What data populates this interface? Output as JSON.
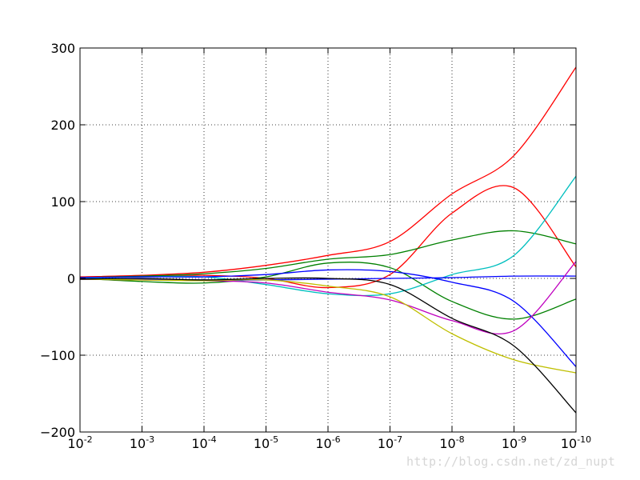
{
  "chart_data": {
    "type": "line",
    "title": "",
    "xlabel": "",
    "ylabel": "",
    "xscale": "log",
    "x_inverted": true,
    "xlim": [
      0.01,
      1e-10
    ],
    "ylim": [
      -200,
      300
    ],
    "grid": true,
    "x_tick_labels": [
      {
        "base": "10",
        "exp": "-2"
      },
      {
        "base": "10",
        "exp": "-3"
      },
      {
        "base": "10",
        "exp": "-4"
      },
      {
        "base": "10",
        "exp": "-5"
      },
      {
        "base": "10",
        "exp": "-6"
      },
      {
        "base": "10",
        "exp": "-7"
      },
      {
        "base": "10",
        "exp": "-8"
      },
      {
        "base": "10",
        "exp": "-9"
      },
      {
        "base": "10",
        "exp": "-10"
      }
    ],
    "y_ticks": [
      300,
      200,
      100,
      0,
      -100,
      -200
    ],
    "y_tick_labels": [
      "300",
      "200",
      "100",
      "0",
      "−100",
      "−200"
    ],
    "x": [
      0.01,
      0.001,
      0.0001,
      1e-05,
      1e-06,
      1e-07,
      1e-08,
      1e-09,
      1e-10
    ],
    "series": [
      {
        "color": "#ff0000",
        "values": [
          2,
          4,
          8,
          17,
          30,
          48,
          110,
          160,
          275
        ]
      },
      {
        "color": "#ff0000",
        "values": [
          1,
          3,
          4,
          0,
          -12,
          5,
          85,
          118,
          15
        ]
      },
      {
        "color": "#008000",
        "values": [
          1,
          3,
          6,
          13,
          25,
          31,
          50,
          62,
          45
        ]
      },
      {
        "color": "#008000",
        "values": [
          0,
          -4,
          -6,
          2,
          20,
          14,
          -30,
          -53,
          -27
        ]
      },
      {
        "color": "#00bfbf",
        "values": [
          0,
          2,
          2,
          -8,
          -20,
          -20,
          5,
          30,
          133
        ]
      },
      {
        "color": "#0000ff",
        "values": [
          1,
          2,
          2,
          5,
          11,
          9,
          -5,
          -30,
          -115
        ]
      },
      {
        "color": "#0000ff",
        "values": [
          -1,
          -1,
          -2,
          -2,
          -1,
          0,
          1,
          3,
          3
        ]
      },
      {
        "color": "#bf00bf",
        "values": [
          -1,
          -2,
          -3,
          -6,
          -18,
          -28,
          -55,
          -68,
          22
        ]
      },
      {
        "color": "#bfbf00",
        "values": [
          -1,
          -2,
          -3,
          -2,
          -10,
          -24,
          -72,
          -106,
          -123
        ]
      },
      {
        "color": "#000000",
        "values": [
          -1,
          0,
          -2,
          0,
          0,
          -8,
          -52,
          -88,
          -175
        ]
      }
    ]
  },
  "watermark": "http://blog.csdn.net/zd_nupt"
}
